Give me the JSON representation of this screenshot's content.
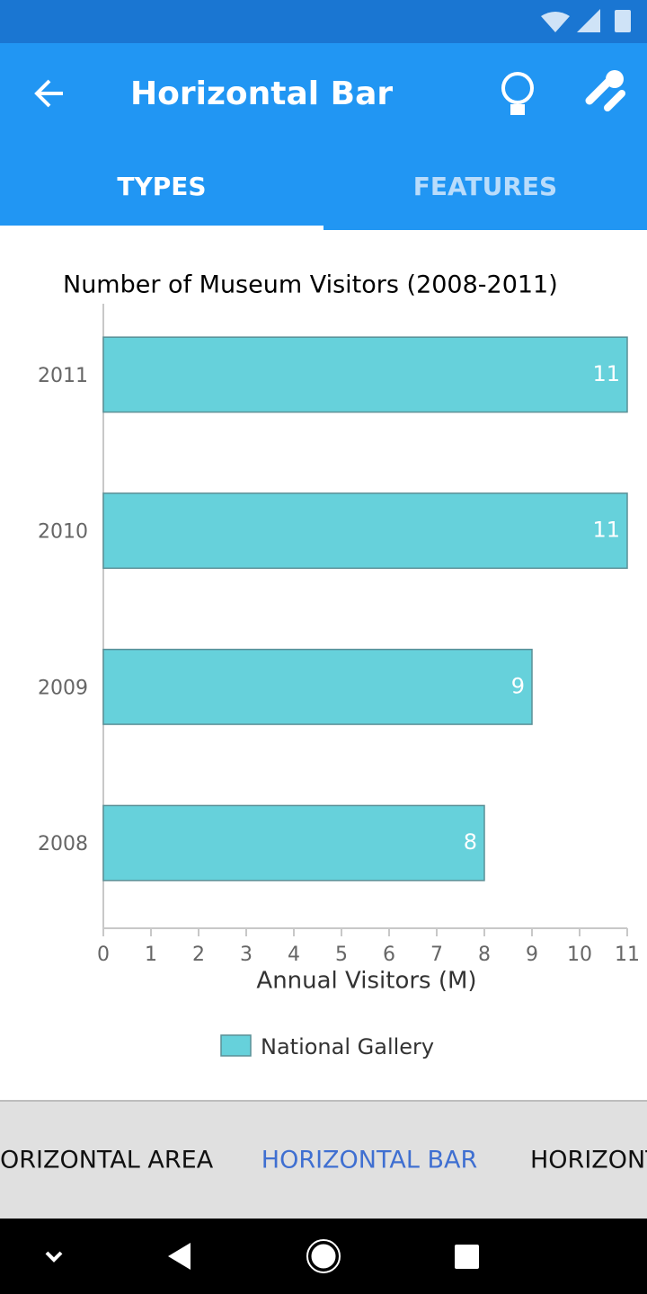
{
  "app_bar": {
    "title": "Horizontal Bar"
  },
  "tabs": [
    "TYPES",
    "FEATURES"
  ],
  "chart_data": {
    "type": "bar",
    "orientation": "horizontal",
    "title": "Number of Museum Visitors (2008-2011)",
    "x_label": "Annual Visitors (M)",
    "categories": [
      "2008",
      "2009",
      "2010",
      "2011"
    ],
    "series": [
      {
        "name": "National Gallery",
        "color": "#66d1db",
        "values": [
          8,
          9,
          11,
          11
        ]
      }
    ],
    "xlim": [
      0,
      11
    ],
    "xticks": [
      0,
      1,
      2,
      3,
      4,
      5,
      6,
      7,
      8,
      9,
      10,
      11
    ],
    "grid": false
  },
  "chart_types": [
    "ORIZONTAL AREA",
    "HORIZONTAL BAR",
    "HORIZONT"
  ]
}
